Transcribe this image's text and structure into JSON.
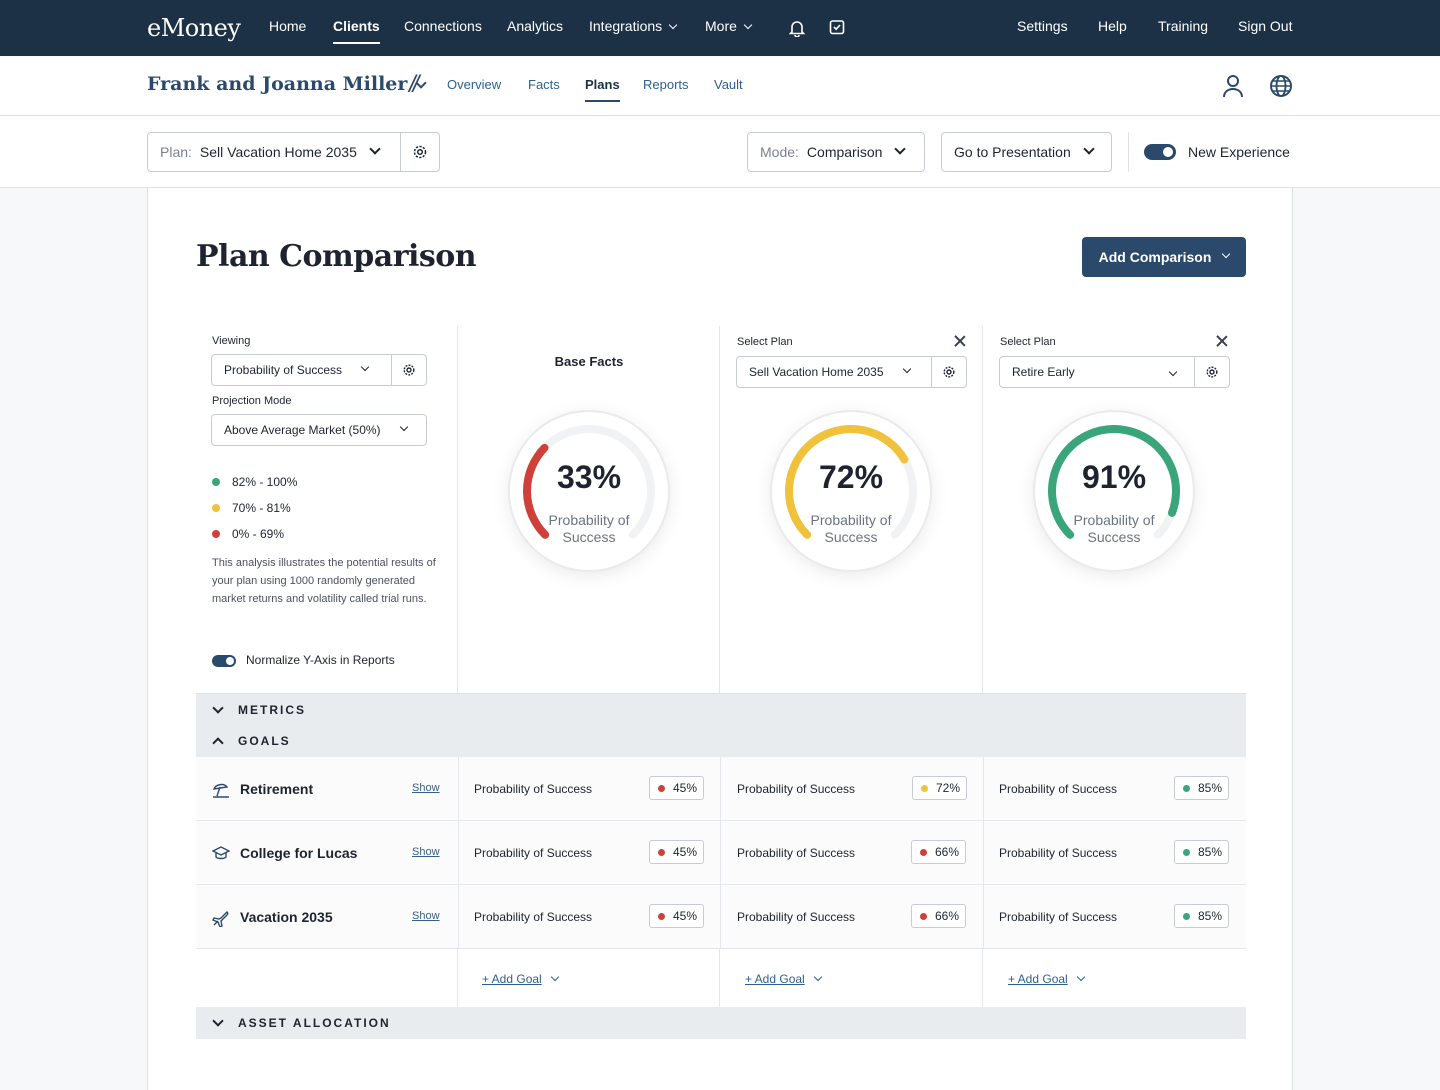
{
  "nav": {
    "logo": "eMoney",
    "items": [
      "Home",
      "Clients",
      "Connections",
      "Analytics",
      "Integrations",
      "More"
    ],
    "right": [
      "Settings",
      "Help",
      "Training",
      "Sign Out"
    ]
  },
  "client": {
    "name": "Frank and Joanna Miller",
    "tabs": [
      "Overview",
      "Facts",
      "Plans",
      "Reports",
      "Vault"
    ]
  },
  "planbar": {
    "plan_label": "Plan:",
    "plan_value": "Sell Vacation Home 2035",
    "mode_label": "Mode:",
    "mode_value": "Comparison",
    "presentation": "Go to Presentation",
    "new_experience": "New Experience"
  },
  "page": {
    "title": "Plan Comparison",
    "add_comparison": "Add Comparison"
  },
  "controls": {
    "viewing_label": "Viewing",
    "viewing_value": "Probability of Success",
    "projection_label": "Projection Mode",
    "projection_value": "Above Average Market (50%)",
    "legend": [
      {
        "range": "82% - 100%",
        "color": "#3aa57a"
      },
      {
        "range": "70% - 81%",
        "color": "#f0c13a"
      },
      {
        "range": "0% - 69%",
        "color": "#d0403a"
      }
    ],
    "description": "This analysis illustrates the potential results of your plan using 1000 randomly generated market returns and volatility called trial runs.",
    "normalize": "Normalize Y-Axis in Reports"
  },
  "columns": [
    {
      "title": "Base Facts",
      "percent": "33%",
      "value": 0.33,
      "color": "#d0403a",
      "label": "Probability of Success"
    },
    {
      "select_label": "Select Plan",
      "plan": "Sell Vacation Home 2035",
      "percent": "72%",
      "value": 0.72,
      "color": "#f0c13a",
      "label": "Probability of Success"
    },
    {
      "select_label": "Select Plan",
      "plan": "Retire Early",
      "percent": "91%",
      "value": 0.91,
      "color": "#3aa57a",
      "label": "Probability of Success"
    }
  ],
  "sections": {
    "metrics": "METRICS",
    "goals": "GOALS",
    "asset_allocation": "ASSET ALLOCATION"
  },
  "goals": [
    {
      "name": "Retirement",
      "show": "Show",
      "cells": [
        {
          "label": "Probability of Success",
          "value": "45%",
          "color": "#d0403a"
        },
        {
          "label": "Probability of Success",
          "value": "72%",
          "color": "#f0c13a"
        },
        {
          "label": "Probability of Success",
          "value": "85%",
          "color": "#3aa57a"
        }
      ]
    },
    {
      "name": "College for Lucas",
      "show": "Show",
      "cells": [
        {
          "label": "Probability of Success",
          "value": "45%",
          "color": "#d0403a"
        },
        {
          "label": "Probability of Success",
          "value": "66%",
          "color": "#d0403a"
        },
        {
          "label": "Probability of Success",
          "value": "85%",
          "color": "#3aa57a"
        }
      ]
    },
    {
      "name": "Vacation 2035",
      "show": "Show",
      "cells": [
        {
          "label": "Probability of Success",
          "value": "45%",
          "color": "#d0403a"
        },
        {
          "label": "Probability of Success",
          "value": "66%",
          "color": "#d0403a"
        },
        {
          "label": "Probability of Success",
          "value": "85%",
          "color": "#3aa57a"
        }
      ]
    }
  ],
  "add_goal": "+ Add Goal",
  "icons": {
    "bell": "bell-icon",
    "tasks": "checkbox-icon",
    "user": "user-icon",
    "globe": "globe-icon",
    "gear": "gear-icon",
    "retirement": "beach-umbrella-icon",
    "college": "graduation-cap-icon",
    "vacation": "airplane-icon"
  }
}
